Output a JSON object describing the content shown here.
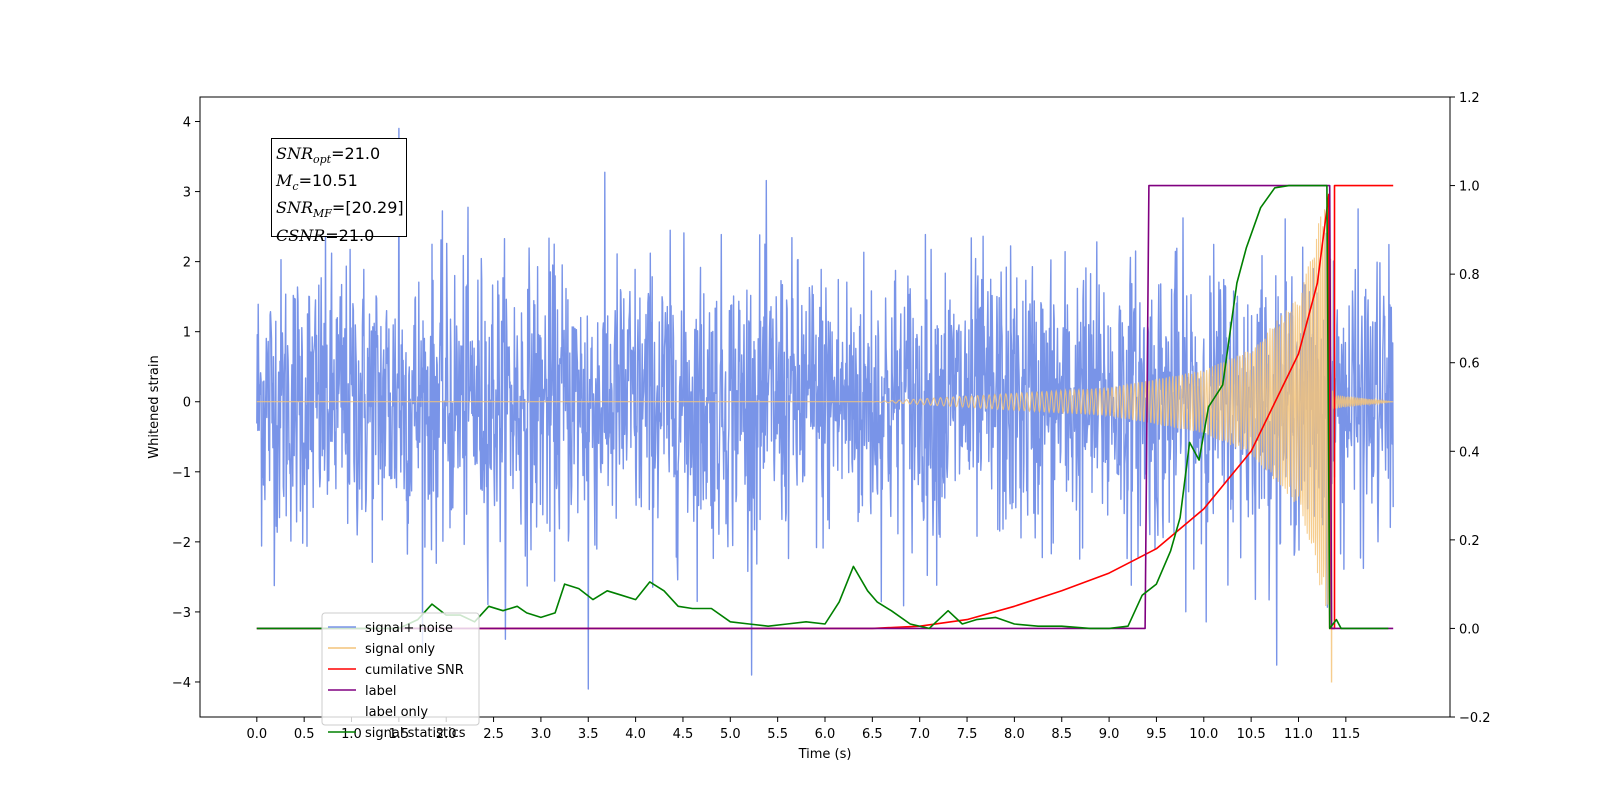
{
  "chart_data": {
    "type": "line",
    "xlabel": "Time (s)",
    "ylabel": "Whitened strain",
    "x_ticks": [
      "0.0",
      "0.5",
      "1.0",
      "1.5",
      "2.0",
      "2.5",
      "3.0",
      "3.5",
      "4.0",
      "4.5",
      "5.0",
      "5.5",
      "6.0",
      "6.5",
      "7.0",
      "7.5",
      "8.0",
      "8.5",
      "9.0",
      "9.5",
      "10.0",
      "10.5",
      "11.0",
      "11.5"
    ],
    "y_left_ticks": [
      "4",
      "3",
      "2",
      "1",
      "0",
      "−1",
      "−2",
      "−3",
      "−4"
    ],
    "y_right_ticks": [
      "1.2",
      "1.0",
      "0.8",
      "0.6",
      "0.4",
      "0.2",
      "0.0",
      "−0.2"
    ],
    "xlim": [
      -0.6,
      12.6
    ],
    "ylim_left": [
      -4.5,
      4.35
    ],
    "ylim_right": [
      -0.2,
      1.2
    ],
    "annotation": {
      "snr_opt_sym": "SNR",
      "snr_opt_sub": "opt",
      "snr_opt_val": "=21.0",
      "mc_sym": "M",
      "mc_sub": "c",
      "mc_val": "=10.51",
      "snr_mf_sym": "SNR",
      "snr_mf_sub": "MF",
      "snr_mf_val": "=[20.29]",
      "csnr_sym": "CSNR",
      "csnr_val": "=21.0"
    },
    "legend": {
      "placement": "lower-left",
      "entries": [
        "signal+ noise",
        "signal only",
        "cumilative SNR",
        "label",
        "label only",
        "signal statistics"
      ]
    },
    "series": [
      {
        "name": "signal+ noise",
        "color": "#7994e8",
        "axis": "left",
        "kind": "noise",
        "x_range": [
          0,
          12.0
        ],
        "amplitude_sigma": 1.0,
        "extremes": [
          -4.1,
          3.9
        ]
      },
      {
        "name": "signal only",
        "color": "#f4c47a",
        "axis": "left",
        "kind": "chirp",
        "x_range": [
          0,
          12.0
        ],
        "envelope": [
          [
            0,
            0.0
          ],
          [
            6.5,
            0.0
          ],
          [
            9.0,
            0.2
          ],
          [
            10.0,
            0.45
          ],
          [
            10.5,
            0.75
          ],
          [
            11.0,
            1.5
          ],
          [
            11.3,
            3.0
          ],
          [
            11.33,
            3.05
          ],
          [
            11.36,
            0.1
          ],
          [
            12.0,
            0.0
          ]
        ],
        "min_spike": [
          11.35,
          -4.0
        ]
      },
      {
        "name": "cumilative SNR",
        "color": "#ff0000",
        "axis": "right",
        "points": [
          [
            0,
            0.0
          ],
          [
            6.5,
            0.0
          ],
          [
            7.0,
            0.005
          ],
          [
            7.5,
            0.02
          ],
          [
            8.0,
            0.05
          ],
          [
            8.5,
            0.085
          ],
          [
            9.0,
            0.125
          ],
          [
            9.5,
            0.18
          ],
          [
            10.0,
            0.27
          ],
          [
            10.5,
            0.4
          ],
          [
            11.0,
            0.62
          ],
          [
            11.2,
            0.78
          ],
          [
            11.32,
            0.98
          ],
          [
            11.33,
            0.0
          ],
          [
            11.38,
            0.0
          ],
          [
            11.38,
            1.0
          ],
          [
            12.0,
            1.0
          ]
        ]
      },
      {
        "name": "label",
        "color": "#800080",
        "axis": "right",
        "points": [
          [
            0,
            0.0
          ],
          [
            9.38,
            0.0
          ],
          [
            9.42,
            1.0
          ],
          [
            11.33,
            1.0
          ],
          [
            11.35,
            0.0
          ],
          [
            12.0,
            0.0
          ]
        ]
      },
      {
        "name": "label only",
        "color": "#ffffff",
        "axis": "right",
        "points": []
      },
      {
        "name": "signal statistics",
        "color": "#008000",
        "axis": "right",
        "points": [
          [
            0,
            0.0
          ],
          [
            1.5,
            0.0
          ],
          [
            1.7,
            0.02
          ],
          [
            1.85,
            0.055
          ],
          [
            2.0,
            0.03
          ],
          [
            2.15,
            0.03
          ],
          [
            2.3,
            0.015
          ],
          [
            2.45,
            0.05
          ],
          [
            2.6,
            0.04
          ],
          [
            2.75,
            0.05
          ],
          [
            2.85,
            0.035
          ],
          [
            3.0,
            0.025
          ],
          [
            3.15,
            0.035
          ],
          [
            3.25,
            0.1
          ],
          [
            3.4,
            0.09
          ],
          [
            3.55,
            0.065
          ],
          [
            3.7,
            0.085
          ],
          [
            3.85,
            0.075
          ],
          [
            4.0,
            0.065
          ],
          [
            4.15,
            0.105
          ],
          [
            4.3,
            0.085
          ],
          [
            4.45,
            0.05
          ],
          [
            4.6,
            0.045
          ],
          [
            4.8,
            0.045
          ],
          [
            5.0,
            0.015
          ],
          [
            5.2,
            0.01
          ],
          [
            5.4,
            0.005
          ],
          [
            5.6,
            0.01
          ],
          [
            5.8,
            0.015
          ],
          [
            6.0,
            0.01
          ],
          [
            6.15,
            0.06
          ],
          [
            6.3,
            0.14
          ],
          [
            6.45,
            0.085
          ],
          [
            6.55,
            0.06
          ],
          [
            6.7,
            0.04
          ],
          [
            6.9,
            0.01
          ],
          [
            7.1,
            0.0
          ],
          [
            7.3,
            0.04
          ],
          [
            7.45,
            0.01
          ],
          [
            7.6,
            0.02
          ],
          [
            7.8,
            0.025
          ],
          [
            8.0,
            0.01
          ],
          [
            8.25,
            0.005
          ],
          [
            8.5,
            0.005
          ],
          [
            8.8,
            0.0
          ],
          [
            9.0,
            0.0
          ],
          [
            9.2,
            0.005
          ],
          [
            9.35,
            0.075
          ],
          [
            9.5,
            0.1
          ],
          [
            9.65,
            0.175
          ],
          [
            9.75,
            0.25
          ],
          [
            9.85,
            0.42
          ],
          [
            9.95,
            0.38
          ],
          [
            10.05,
            0.5
          ],
          [
            10.2,
            0.55
          ],
          [
            10.35,
            0.78
          ],
          [
            10.45,
            0.86
          ],
          [
            10.6,
            0.95
          ],
          [
            10.75,
            0.995
          ],
          [
            10.9,
            1.0
          ],
          [
            11.3,
            1.0
          ],
          [
            11.33,
            0.0
          ],
          [
            11.4,
            0.02
          ],
          [
            11.45,
            0.0
          ],
          [
            11.95,
            0.0
          ]
        ]
      }
    ]
  }
}
